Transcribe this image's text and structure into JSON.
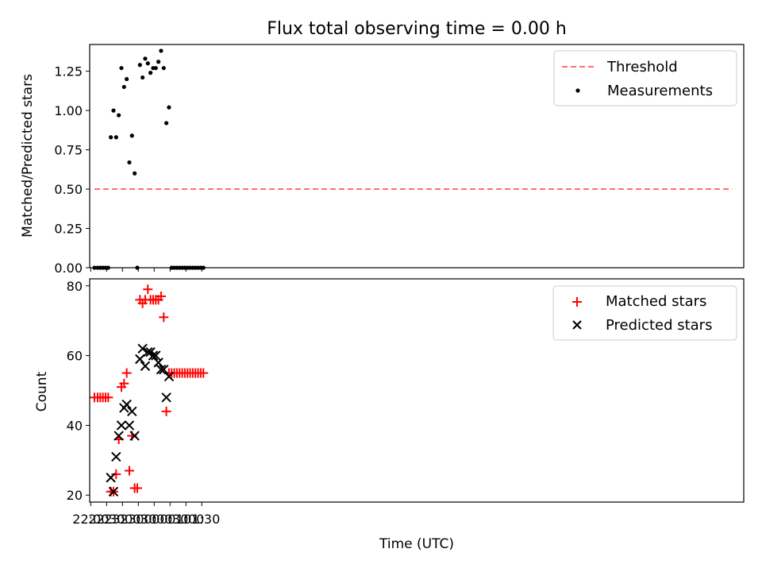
{
  "chart_data": [
    {
      "type": "scatter",
      "title": "Flux total observing time = 0.00 h",
      "xlabel": "",
      "ylabel": "Matched/Predicted stars",
      "ylim": [
        0,
        1.42
      ],
      "yticks": [
        "0.00",
        "0.25",
        "0.50",
        "0.75",
        "1.00",
        "1.25"
      ],
      "xlim_minutes": [
        -2,
        1235
      ],
      "legend_position": "top-right",
      "threshold": {
        "name": "Threshold",
        "value": 0.5,
        "x_from": 7,
        "x_to": 1213,
        "color": "#ff6f6f"
      },
      "series": [
        {
          "name": "Measurements",
          "color": "#000000",
          "marker": "dot",
          "points": [
            [
              "22:07",
              0
            ],
            [
              "22:13",
              0
            ],
            [
              "22:18",
              0
            ],
            [
              "22:23",
              0
            ],
            [
              "22:28",
              0
            ],
            [
              "22:33",
              0
            ],
            [
              "22:38",
              0.83
            ],
            [
              "22:43",
              1.0
            ],
            [
              "22:48",
              0.83
            ],
            [
              "22:53",
              0.97
            ],
            [
              "22:58",
              1.27
            ],
            [
              "23:03",
              1.15
            ],
            [
              "23:08",
              1.2
            ],
            [
              "23:13",
              0.67
            ],
            [
              "23:18",
              0.84
            ],
            [
              "23:23",
              0.6
            ],
            [
              "23:28",
              0
            ],
            [
              "23:33",
              1.29
            ],
            [
              "23:38",
              1.21
            ],
            [
              "23:43",
              1.33
            ],
            [
              "23:48",
              1.3
            ],
            [
              "23:53",
              1.24
            ],
            [
              "23:58",
              1.27
            ],
            [
              "00:03",
              1.27
            ],
            [
              "00:08",
              1.31
            ],
            [
              "00:13",
              1.38
            ],
            [
              "00:18",
              1.27
            ],
            [
              "00:23",
              0.92
            ],
            [
              "00:28",
              1.02
            ],
            [
              "00:33",
              0
            ],
            [
              "00:38",
              0
            ],
            [
              "00:43",
              0
            ],
            [
              "00:48",
              0
            ],
            [
              "00:53",
              0
            ],
            [
              "00:58",
              0
            ],
            [
              "01:03",
              0
            ],
            [
              "01:08",
              0
            ],
            [
              "01:13",
              0
            ],
            [
              "01:18",
              0
            ],
            [
              "01:23",
              0
            ],
            [
              "01:28",
              0
            ],
            [
              "01:33",
              0
            ]
          ]
        }
      ]
    },
    {
      "type": "scatter",
      "title": "",
      "xlabel": "Time (UTC)",
      "ylabel": "Count",
      "ylim": [
        18,
        82
      ],
      "yticks": [
        "20",
        "40",
        "60",
        "80"
      ],
      "xticks": [
        "22:00",
        "22:30",
        "23:00",
        "23:30",
        "00:00",
        "00:30",
        "01:00",
        "01:30"
      ],
      "xlim_minutes": [
        -2,
        1235
      ],
      "legend_position": "top-right",
      "series": [
        {
          "name": "Matched stars",
          "color": "#ff0000",
          "marker": "plus",
          "points": [
            [
              "22:07",
              48
            ],
            [
              "22:13",
              48
            ],
            [
              "22:18",
              48
            ],
            [
              "22:23",
              48
            ],
            [
              "22:28",
              48
            ],
            [
              "22:33",
              48
            ],
            [
              "22:38",
              21
            ],
            [
              "22:43",
              21
            ],
            [
              "22:48",
              26
            ],
            [
              "22:53",
              36
            ],
            [
              "22:58",
              51
            ],
            [
              "23:03",
              52
            ],
            [
              "23:08",
              55
            ],
            [
              "23:13",
              27
            ],
            [
              "23:18",
              37
            ],
            [
              "23:23",
              22
            ],
            [
              "23:28",
              22
            ],
            [
              "23:33",
              76
            ],
            [
              "23:38",
              75
            ],
            [
              "23:43",
              76
            ],
            [
              "23:48",
              79
            ],
            [
              "23:53",
              76
            ],
            [
              "23:58",
              76
            ],
            [
              "00:03",
              76
            ],
            [
              "00:08",
              76
            ],
            [
              "00:13",
              77
            ],
            [
              "00:18",
              71
            ],
            [
              "00:23",
              44
            ],
            [
              "00:28",
              55
            ],
            [
              "00:33",
              55
            ],
            [
              "00:38",
              55
            ],
            [
              "00:43",
              55
            ],
            [
              "00:48",
              55
            ],
            [
              "00:53",
              55
            ],
            [
              "00:58",
              55
            ],
            [
              "01:03",
              55
            ],
            [
              "01:08",
              55
            ],
            [
              "01:13",
              55
            ],
            [
              "01:18",
              55
            ],
            [
              "01:23",
              55
            ],
            [
              "01:28",
              55
            ],
            [
              "01:33",
              55
            ]
          ]
        },
        {
          "name": "Predicted stars",
          "color": "#000000",
          "marker": "x",
          "points": [
            [
              "22:38",
              25
            ],
            [
              "22:43",
              21
            ],
            [
              "22:48",
              31
            ],
            [
              "22:53",
              37
            ],
            [
              "22:58",
              40
            ],
            [
              "23:03",
              45
            ],
            [
              "23:08",
              46
            ],
            [
              "23:13",
              40
            ],
            [
              "23:18",
              44
            ],
            [
              "23:23",
              37
            ],
            [
              "23:33",
              59
            ],
            [
              "23:38",
              62
            ],
            [
              "23:43",
              57
            ],
            [
              "23:48",
              61
            ],
            [
              "23:53",
              61
            ],
            [
              "23:58",
              60
            ],
            [
              "00:03",
              60
            ],
            [
              "00:08",
              58
            ],
            [
              "00:13",
              56
            ],
            [
              "00:18",
              56
            ],
            [
              "00:23",
              48
            ],
            [
              "00:28",
              54
            ]
          ]
        }
      ]
    }
  ]
}
